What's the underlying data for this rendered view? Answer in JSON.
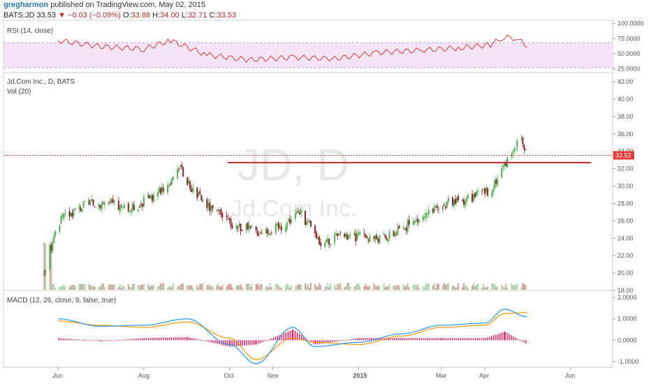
{
  "header": {
    "author": "gregharmon",
    "published_text": "published on TradingView.com, May 02, 2015"
  },
  "quote": {
    "symbol": "BATS:JD",
    "last": "33.53",
    "arrow": "▼",
    "change": "−0.03 (−0.09%)",
    "open_label": "O:",
    "open": "33.88",
    "high_label": "H:",
    "high": "34.00",
    "low_label": "L:",
    "low": "32.71",
    "close_label": "C:",
    "close": "33.53"
  },
  "rsi": {
    "label": "RSI (14, close)",
    "ticks": [
      "100.0000",
      "75.0000",
      "50.0000",
      "25.0000"
    ],
    "color": "#e53935"
  },
  "price": {
    "title": "Jd.Com Inc., D, BATS",
    "vol_label": "Vol (20)",
    "ticks": [
      "42.00",
      "40.00",
      "38.00",
      "36.00",
      "34.00",
      "32.00",
      "30.00",
      "28.00",
      "26.00",
      "24.00",
      "22.00",
      "20.00",
      "18.00"
    ],
    "last_badge": "33.53",
    "resistance_level": 32.7,
    "watermark_big": "JD, D",
    "watermark_small": "Jd.Com Inc.",
    "up_color": "#4caf50",
    "down_color": "#8e2424"
  },
  "macd": {
    "label": "MACD (12, 26, close, 9, false, true)",
    "ticks": [
      "2.0000",
      "1.0000",
      "0.0000",
      "-1.0000"
    ],
    "macd_color": "#2196f3",
    "signal_color": "#ff9800",
    "hist_color": "#e91e63"
  },
  "x_axis": {
    "labels": [
      "Jun",
      "Aug",
      "Oct",
      "Nov",
      "2015",
      "Mar",
      "Apr",
      "Jun"
    ]
  },
  "chart_data": [
    {
      "type": "line",
      "name": "RSI (14, close)",
      "ylim": [
        25,
        100
      ],
      "x": [
        "2014-06-01",
        "2014-07-01",
        "2014-08-01",
        "2014-08-20",
        "2014-09-15",
        "2014-10-15",
        "2014-11-15",
        "2014-12-15",
        "2015-01-15",
        "2015-02-15",
        "2015-03-15",
        "2015-04-05",
        "2015-04-15",
        "2015-04-25",
        "2015-05-01"
      ],
      "y": [
        72,
        62,
        58,
        72,
        48,
        40,
        44,
        42,
        52,
        56,
        60,
        65,
        78,
        74,
        60
      ]
    },
    {
      "type": "line",
      "name": "Jd.Com Inc., D, BATS (close)",
      "ylim": [
        18,
        42
      ],
      "x": [
        "2014-05-22",
        "2014-05-29",
        "2014-06-05",
        "2014-06-20",
        "2014-07-05",
        "2014-07-20",
        "2014-08-05",
        "2014-08-20",
        "2014-08-25",
        "2014-09-05",
        "2014-09-20",
        "2014-10-05",
        "2014-10-20",
        "2014-11-05",
        "2014-11-20",
        "2014-12-05",
        "2014-12-20",
        "2015-01-05",
        "2015-01-20",
        "2015-02-05",
        "2015-02-20",
        "2015-03-05",
        "2015-03-20",
        "2015-04-05",
        "2015-04-15",
        "2015-04-22",
        "2015-04-27",
        "2015-05-01"
      ],
      "y": [
        20.0,
        24.5,
        26.5,
        27.8,
        28.2,
        27.2,
        28.6,
        30.5,
        32.4,
        29.5,
        27.0,
        25.5,
        24.8,
        25.2,
        27.0,
        23.6,
        24.1,
        24.2,
        24.0,
        25.5,
        26.8,
        28.0,
        28.6,
        29.6,
        32.6,
        34.6,
        35.4,
        33.53
      ]
    },
    {
      "type": "line",
      "name": "MACD (12, 26, close, 9, false, true)",
      "ylim": [
        -1.2,
        2.2
      ],
      "x": [
        "2014-06-01",
        "2014-07-01",
        "2014-08-01",
        "2014-09-01",
        "2014-10-01",
        "2014-10-20",
        "2014-11-15",
        "2014-12-01",
        "2015-01-01",
        "2015-02-01",
        "2015-03-01",
        "2015-04-01",
        "2015-04-15",
        "2015-05-01"
      ],
      "series": [
        {
          "name": "MACD",
          "values": [
            1.0,
            0.65,
            0.7,
            1.0,
            -0.2,
            -1.1,
            0.6,
            -0.3,
            -0.1,
            0.3,
            0.7,
            0.8,
            1.45,
            1.1
          ]
        },
        {
          "name": "Signal",
          "values": [
            0.9,
            0.7,
            0.6,
            0.85,
            0.1,
            -0.9,
            0.1,
            -0.1,
            -0.2,
            0.2,
            0.6,
            0.7,
            1.25,
            1.3
          ]
        },
        {
          "name": "Histogram",
          "values": [
            0.1,
            -0.05,
            0.1,
            0.15,
            -0.3,
            -0.2,
            0.5,
            -0.2,
            0.1,
            0.1,
            0.1,
            0.1,
            0.4,
            -0.2
          ]
        }
      ]
    }
  ]
}
